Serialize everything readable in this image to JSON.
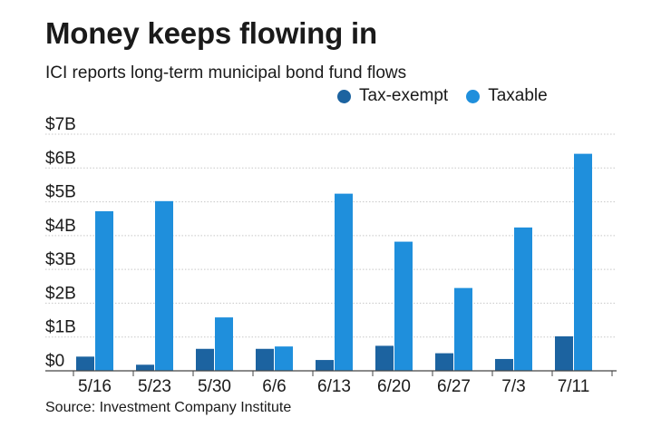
{
  "header": {
    "title": "Money keeps flowing in",
    "subtitle": "ICI reports long-term municipal bond fund flows"
  },
  "footer": {
    "source": "Source: Investment Company Institute"
  },
  "colors": {
    "tax_exempt": "#1c63a0",
    "taxable": "#1f8fdc",
    "grid": "#c8c8c8",
    "axis": "#444444"
  },
  "chart_data": {
    "type": "bar",
    "title": "Money keeps flowing in",
    "subtitle": "ICI reports long-term municipal bond fund flows",
    "xlabel": "",
    "ylabel": "",
    "ylim": [
      0,
      7
    ],
    "y_ticks": [
      0,
      1,
      2,
      3,
      4,
      5,
      6,
      7
    ],
    "y_tick_labels": [
      "$0",
      "$1B",
      "$2B",
      "$3B",
      "$4B",
      "$5B",
      "$6B",
      "$7B"
    ],
    "grid": true,
    "legend_position": "top-right",
    "categories": [
      "5/16",
      "5/23",
      "5/30",
      "6/6",
      "6/13",
      "6/20",
      "6/27",
      "7/3",
      "7/11"
    ],
    "series": [
      {
        "name": "Tax-exempt",
        "values": [
          0.42,
          0.18,
          0.65,
          0.65,
          0.32,
          0.74,
          0.52,
          0.35,
          1.02
        ]
      },
      {
        "name": "Taxable",
        "values": [
          4.72,
          5.02,
          1.58,
          0.72,
          5.24,
          3.82,
          2.45,
          4.24,
          6.42
        ]
      }
    ]
  }
}
